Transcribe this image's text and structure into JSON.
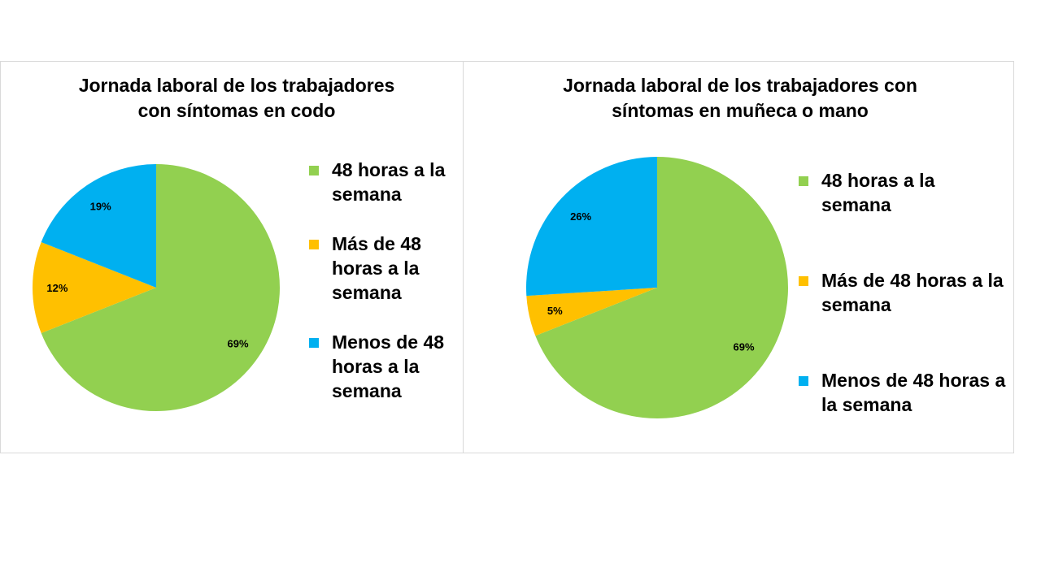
{
  "chart_data": [
    {
      "type": "pie",
      "title": "Jornada laboral de los trabajadores con síntomas en codo",
      "title_lines": [
        "Jornada laboral de los trabajadores",
        "con síntomas en codo"
      ],
      "legend_position": "right",
      "slices": [
        {
          "label": "48 horas a la semana",
          "value": 69,
          "display": "69%",
          "color": "#92d050"
        },
        {
          "label": "Más de 48 horas a la semana",
          "value": 12,
          "display": "12%",
          "color": "#ffc000"
        },
        {
          "label": "Menos de 48 horas a la semana",
          "value": 19,
          "display": "19%",
          "color": "#00b0f0"
        }
      ]
    },
    {
      "type": "pie",
      "title": "Jornada laboral de los trabajadores con síntomas en muñeca o mano",
      "title_lines": [
        "Jornada laboral de los trabajadores con",
        "síntomas en muñeca o mano"
      ],
      "legend_position": "right",
      "slices": [
        {
          "label": "48 horas a la semana",
          "value": 69,
          "display": "69%",
          "color": "#92d050"
        },
        {
          "label": "Más de 48 horas a la semana",
          "value": 5,
          "display": "5%",
          "color": "#ffc000"
        },
        {
          "label": "Menos de 48 horas a la semana",
          "value": 26,
          "display": "26%",
          "color": "#00b0f0"
        }
      ]
    }
  ]
}
